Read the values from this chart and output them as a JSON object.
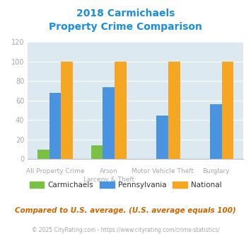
{
  "title_line1": "2018 Carmichaels",
  "title_line2": "Property Crime Comparison",
  "cat_labels_top": [
    "",
    "Arson",
    "Motor Vehicle Theft",
    ""
  ],
  "cat_labels_bot": [
    "All Property Crime",
    "Larceny & Theft",
    "",
    "Burglary"
  ],
  "carmichaels": [
    10,
    14,
    0,
    0
  ],
  "pennsylvania": [
    68,
    74,
    45,
    56
  ],
  "national": [
    100,
    100,
    100,
    100
  ],
  "carmichaels_color": "#7ac143",
  "pennsylvania_color": "#4894e0",
  "national_color": "#f5a623",
  "ylim": [
    0,
    120
  ],
  "yticks": [
    0,
    20,
    40,
    60,
    80,
    100,
    120
  ],
  "background_color": "#dce9f0",
  "title_color": "#1a8fe0",
  "axis_label_color": "#aaaaaa",
  "legend_labels": [
    "Carmichaels",
    "Pennsylvania",
    "National"
  ],
  "legend_label_color": "#333333",
  "footer_text": "Compared to U.S. average. (U.S. average equals 100)",
  "copyright_text": "© 2025 CityRating.com - https://www.cityrating.com/crime-statistics/",
  "footer_color": "#cc6600",
  "copyright_color": "#aaaaaa"
}
